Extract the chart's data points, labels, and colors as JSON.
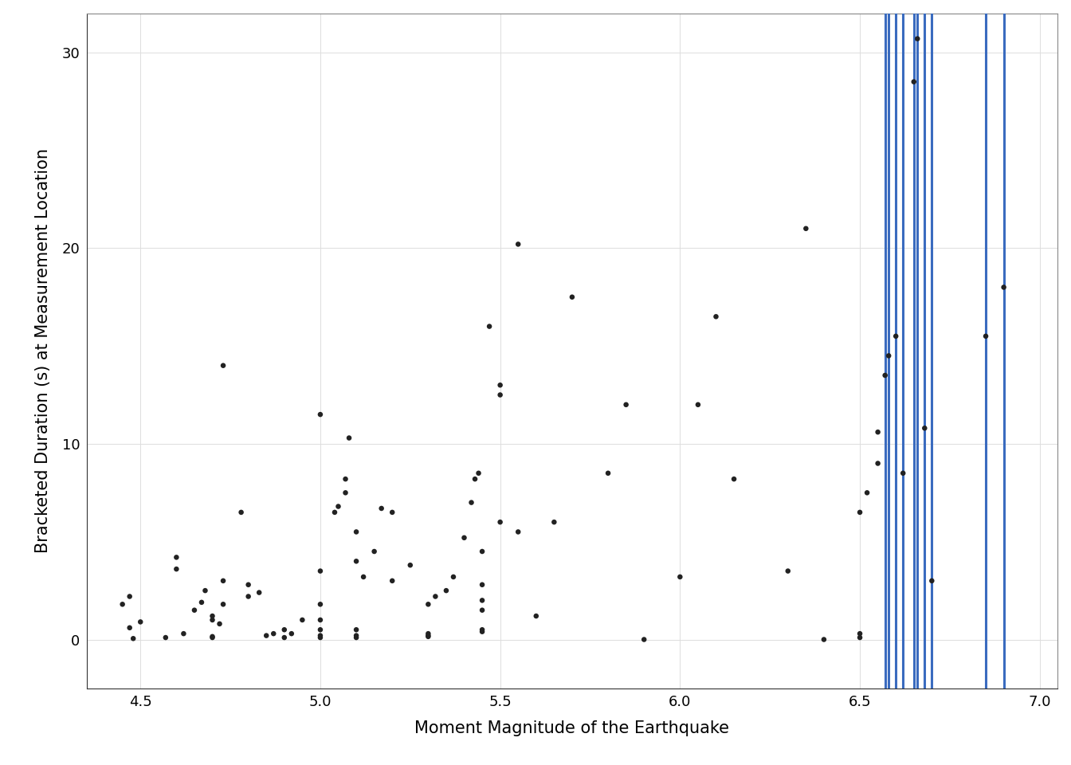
{
  "x_label": "Moment Magnitude of the Earthquake",
  "y_label": "Bracketed Duration (s) at Measurement Location",
  "x_lim": [
    4.35,
    7.05
  ],
  "y_lim": [
    -2.5,
    32
  ],
  "x_ticks": [
    4.5,
    5.0,
    5.5,
    6.0,
    6.5,
    7.0
  ],
  "y_ticks": [
    0,
    10,
    20,
    30
  ],
  "scatter_color": "#222222",
  "line_color": "#3a6bbf",
  "ci_color": "#b0b0b0",
  "background_color": "#ffffff",
  "grid_color": "#dddddd",
  "points": [
    [
      4.45,
      1.8
    ],
    [
      4.47,
      2.2
    ],
    [
      4.47,
      0.6
    ],
    [
      4.48,
      0.05
    ],
    [
      4.5,
      0.9
    ],
    [
      4.57,
      0.1
    ],
    [
      4.6,
      3.6
    ],
    [
      4.6,
      4.2
    ],
    [
      4.62,
      0.3
    ],
    [
      4.65,
      1.5
    ],
    [
      4.67,
      1.9
    ],
    [
      4.68,
      2.5
    ],
    [
      4.7,
      0.1
    ],
    [
      4.7,
      0.15
    ],
    [
      4.7,
      1.0
    ],
    [
      4.7,
      1.2
    ],
    [
      4.72,
      0.8
    ],
    [
      4.73,
      1.8
    ],
    [
      4.73,
      3.0
    ],
    [
      4.73,
      14.0
    ],
    [
      4.78,
      6.5
    ],
    [
      4.8,
      2.2
    ],
    [
      4.8,
      2.8
    ],
    [
      4.83,
      2.4
    ],
    [
      4.85,
      0.2
    ],
    [
      4.87,
      0.3
    ],
    [
      4.9,
      0.1
    ],
    [
      4.9,
      0.5
    ],
    [
      4.92,
      0.3
    ],
    [
      4.95,
      1.0
    ],
    [
      5.0,
      0.1
    ],
    [
      5.0,
      0.2
    ],
    [
      5.0,
      0.5
    ],
    [
      5.0,
      1.0
    ],
    [
      5.0,
      1.8
    ],
    [
      5.0,
      3.5
    ],
    [
      5.0,
      11.5
    ],
    [
      5.04,
      6.5
    ],
    [
      5.05,
      6.8
    ],
    [
      5.07,
      7.5
    ],
    [
      5.07,
      8.2
    ],
    [
      5.08,
      10.3
    ],
    [
      5.1,
      0.1
    ],
    [
      5.1,
      0.2
    ],
    [
      5.1,
      0.5
    ],
    [
      5.1,
      4.0
    ],
    [
      5.1,
      5.5
    ],
    [
      5.12,
      3.2
    ],
    [
      5.15,
      4.5
    ],
    [
      5.17,
      6.7
    ],
    [
      5.2,
      3.0
    ],
    [
      5.2,
      6.5
    ],
    [
      5.25,
      3.8
    ],
    [
      5.3,
      0.15
    ],
    [
      5.3,
      0.2
    ],
    [
      5.3,
      0.3
    ],
    [
      5.3,
      1.8
    ],
    [
      5.32,
      2.2
    ],
    [
      5.35,
      2.5
    ],
    [
      5.37,
      3.2
    ],
    [
      5.4,
      5.2
    ],
    [
      5.42,
      7.0
    ],
    [
      5.43,
      8.2
    ],
    [
      5.44,
      8.5
    ],
    [
      5.45,
      0.4
    ],
    [
      5.45,
      0.5
    ],
    [
      5.45,
      1.5
    ],
    [
      5.45,
      2.0
    ],
    [
      5.45,
      2.8
    ],
    [
      5.45,
      4.5
    ],
    [
      5.47,
      16.0
    ],
    [
      5.5,
      6.0
    ],
    [
      5.5,
      12.5
    ],
    [
      5.5,
      13.0
    ],
    [
      5.55,
      5.5
    ],
    [
      5.55,
      20.2
    ],
    [
      5.6,
      1.2
    ],
    [
      5.65,
      6.0
    ],
    [
      5.7,
      17.5
    ],
    [
      5.8,
      8.5
    ],
    [
      5.85,
      12.0
    ],
    [
      5.9,
      0.0
    ],
    [
      6.0,
      3.2
    ],
    [
      6.05,
      12.0
    ],
    [
      6.1,
      16.5
    ],
    [
      6.15,
      8.2
    ],
    [
      6.3,
      3.5
    ],
    [
      6.35,
      21.0
    ],
    [
      6.4,
      0.0
    ],
    [
      6.5,
      0.1
    ],
    [
      6.5,
      0.3
    ],
    [
      6.5,
      6.5
    ],
    [
      6.52,
      7.5
    ],
    [
      6.55,
      9.0
    ],
    [
      6.55,
      10.6
    ],
    [
      6.57,
      13.5
    ],
    [
      6.58,
      14.5
    ],
    [
      6.6,
      15.5
    ],
    [
      6.62,
      8.5
    ],
    [
      6.65,
      28.5
    ],
    [
      6.66,
      30.7
    ],
    [
      6.68,
      10.8
    ],
    [
      6.7,
      3.0
    ],
    [
      6.85,
      15.5
    ],
    [
      6.9,
      18.0
    ]
  ],
  "axis_fontsize": 15,
  "tick_fontsize": 13,
  "spline_s_factor": 3.5
}
